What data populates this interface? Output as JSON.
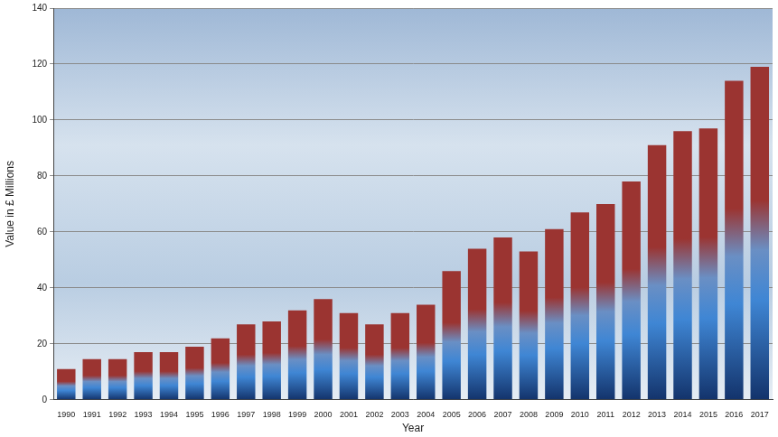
{
  "chart_data": {
    "type": "bar",
    "x_label": "Year",
    "y_label": "Value in £ Millions",
    "categories": [
      "1990",
      "1991",
      "1992",
      "1993",
      "1994",
      "1995",
      "1996",
      "1997",
      "1998",
      "1999",
      "2000",
      "2001",
      "2002",
      "2003",
      "2004",
      "2005",
      "2006",
      "2007",
      "2008",
      "2009",
      "2010",
      "2011",
      "2012",
      "2013",
      "2014",
      "2015",
      "2016",
      "2017"
    ],
    "values": [
      11,
      14.5,
      14.5,
      17,
      17,
      19,
      22,
      27,
      28,
      32,
      36,
      31,
      27,
      31,
      34,
      46,
      54,
      58,
      53,
      61,
      67,
      70,
      78,
      91,
      96,
      97,
      114,
      119
    ],
    "color": "#9b3431",
    "ylim": [
      0,
      140
    ],
    "yticks": [
      0,
      20,
      40,
      60,
      80,
      100,
      120,
      140
    ],
    "grid": true
  }
}
